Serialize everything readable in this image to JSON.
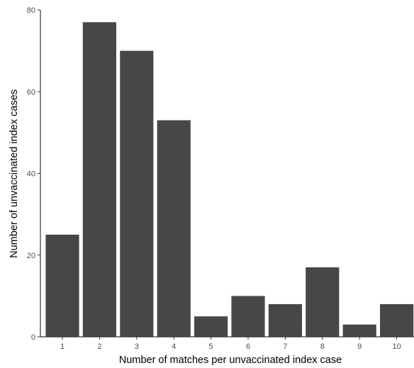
{
  "chart_data": {
    "type": "bar",
    "title": "",
    "xlabel": "Number of matches per unvaccinated index case",
    "ylabel": "Number of unvaccinated index cases",
    "categories": [
      "1",
      "2",
      "3",
      "4",
      "5",
      "6",
      "7",
      "8",
      "9",
      "10"
    ],
    "values": [
      25,
      77,
      70,
      53,
      5,
      10,
      8,
      17,
      3,
      8
    ],
    "ylim": [
      0,
      80
    ],
    "yticks": [
      0,
      20,
      40,
      60,
      80
    ],
    "grid": false,
    "legend": "none",
    "bar_color": "#474747",
    "axis_color": "#333333",
    "tick_label_color": "#4d4d4d",
    "background": "#ffffff"
  }
}
